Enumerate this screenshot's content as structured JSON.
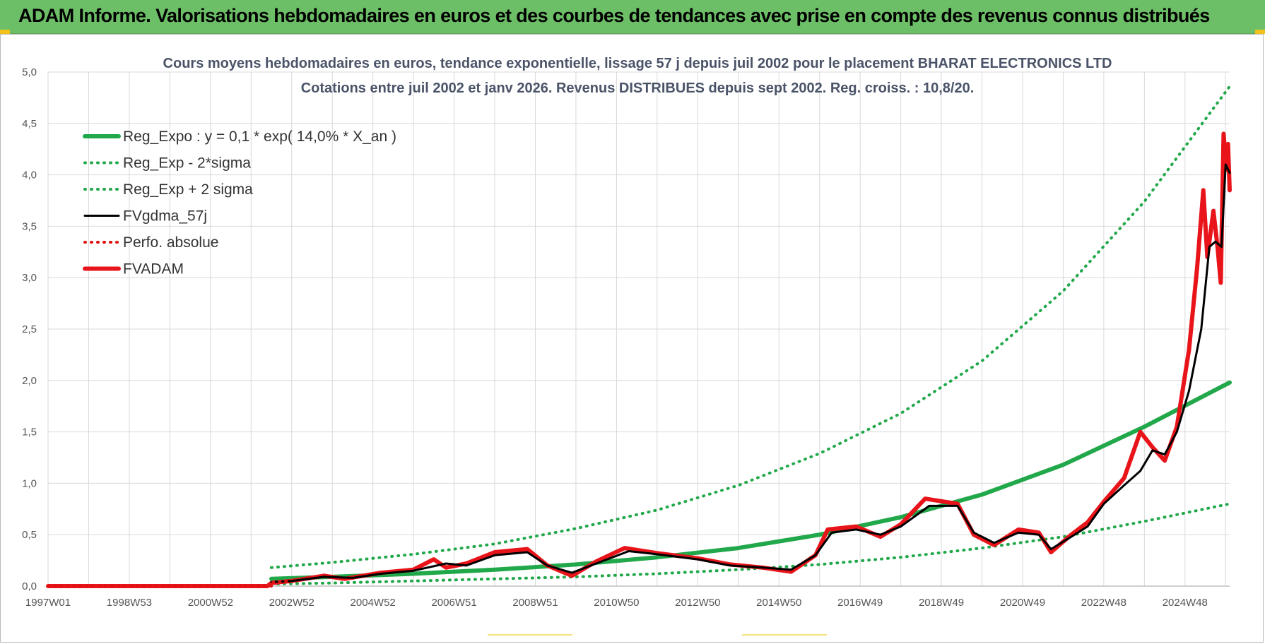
{
  "header": {
    "title": "ADAM Informe. Valorisations hebdomadaires en euros et des courbes de tendances avec prise en compte des revenus connus distribués"
  },
  "colors": {
    "header_bg": "#6dbf67",
    "reg_expo": "#21a84a",
    "reg_band": "#21a84a",
    "fvgdma": "#000000",
    "perfo": "#e01010",
    "fvadam": "#e8141a",
    "grid": "#d9d9d9"
  },
  "chart_data": {
    "type": "line",
    "title": "Cours moyens hebdomadaires en euros, tendance exponentielle, lissage 57 j depuis juil 2002 pour le placement BHARAT ELECTRONICS LTD",
    "subtitle": "Cotations entre juil 2002 et janv 2026. Revenus DISTRIBUES depuis sept 2002. Reg. croiss. : 10,8/20.",
    "xlabel": "",
    "ylabel": "",
    "x_range": [
      1997.0,
      2026.1
    ],
    "ylim": [
      0,
      5
    ],
    "y_ticks": [
      "0,0",
      "0,5",
      "1,0",
      "1,5",
      "2,0",
      "2,5",
      "3,0",
      "3,5",
      "4,0",
      "4,5",
      "5,0"
    ],
    "x_tick_labels": [
      "1997W01",
      "1998W53",
      "2000W52",
      "2002W52",
      "2004W52",
      "2006W51",
      "2008W51",
      "2010W50",
      "2012W50",
      "2014W50",
      "2016W49",
      "2018W49",
      "2020W49",
      "2022W48",
      "2024W48"
    ],
    "grid": true,
    "legend_position": "top-left",
    "series": [
      {
        "name": "Reg_Expo : y = 0,1 * exp( 14,0% *  X_an )",
        "style": "solid-thick",
        "color": "#21a84a",
        "points": [
          [
            2002.5,
            0.07
          ],
          [
            2004,
            0.09
          ],
          [
            2006,
            0.12
          ],
          [
            2008,
            0.16
          ],
          [
            2010,
            0.21
          ],
          [
            2012,
            0.28
          ],
          [
            2014,
            0.37
          ],
          [
            2016,
            0.5
          ],
          [
            2018,
            0.67
          ],
          [
            2020,
            0.89
          ],
          [
            2022,
            1.18
          ],
          [
            2024,
            1.55
          ],
          [
            2026.1,
            1.98
          ]
        ]
      },
      {
        "name": "Reg_Exp - 2*sigma",
        "style": "dotted",
        "color": "#21a84a",
        "points": [
          [
            2002.5,
            0.02
          ],
          [
            2004,
            0.03
          ],
          [
            2006,
            0.05
          ],
          [
            2008,
            0.07
          ],
          [
            2010,
            0.09
          ],
          [
            2012,
            0.12
          ],
          [
            2014,
            0.16
          ],
          [
            2016,
            0.21
          ],
          [
            2018,
            0.28
          ],
          [
            2020,
            0.37
          ],
          [
            2022,
            0.48
          ],
          [
            2024,
            0.63
          ],
          [
            2026.1,
            0.8
          ]
        ]
      },
      {
        "name": "Reg_Exp + 2 sigma",
        "style": "dotted",
        "color": "#21a84a",
        "points": [
          [
            2002.5,
            0.18
          ],
          [
            2004,
            0.23
          ],
          [
            2006,
            0.31
          ],
          [
            2008,
            0.41
          ],
          [
            2010,
            0.56
          ],
          [
            2012,
            0.74
          ],
          [
            2014,
            0.98
          ],
          [
            2016,
            1.29
          ],
          [
            2018,
            1.68
          ],
          [
            2020,
            2.19
          ],
          [
            2022,
            2.87
          ],
          [
            2024,
            3.74
          ],
          [
            2026.1,
            4.86
          ]
        ]
      },
      {
        "name": "FVgdma_57j",
        "style": "solid",
        "color": "#000000",
        "points": [
          [
            2002.5,
            0.04
          ],
          [
            2003,
            0.05
          ],
          [
            2003.8,
            0.09
          ],
          [
            2004.5,
            0.08
          ],
          [
            2005.2,
            0.12
          ],
          [
            2006,
            0.15
          ],
          [
            2006.8,
            0.22
          ],
          [
            2007.3,
            0.2
          ],
          [
            2008,
            0.3
          ],
          [
            2008.8,
            0.33
          ],
          [
            2009.3,
            0.2
          ],
          [
            2009.9,
            0.13
          ],
          [
            2010.5,
            0.22
          ],
          [
            2011.3,
            0.34
          ],
          [
            2012,
            0.31
          ],
          [
            2013,
            0.26
          ],
          [
            2013.8,
            0.2
          ],
          [
            2014.6,
            0.18
          ],
          [
            2015.3,
            0.16
          ],
          [
            2015.9,
            0.3
          ],
          [
            2016.3,
            0.52
          ],
          [
            2016.9,
            0.55
          ],
          [
            2017.5,
            0.5
          ],
          [
            2018,
            0.58
          ],
          [
            2018.7,
            0.78
          ],
          [
            2019.4,
            0.78
          ],
          [
            2019.8,
            0.52
          ],
          [
            2020.3,
            0.42
          ],
          [
            2020.9,
            0.52
          ],
          [
            2021.4,
            0.5
          ],
          [
            2021.7,
            0.36
          ],
          [
            2022.2,
            0.48
          ],
          [
            2022.6,
            0.58
          ],
          [
            2023,
            0.8
          ],
          [
            2023.5,
            0.98
          ],
          [
            2023.9,
            1.12
          ],
          [
            2024.2,
            1.32
          ],
          [
            2024.5,
            1.28
          ],
          [
            2024.8,
            1.5
          ],
          [
            2025.1,
            1.9
          ],
          [
            2025.4,
            2.5
          ],
          [
            2025.6,
            3.3
          ],
          [
            2025.75,
            3.35
          ],
          [
            2025.9,
            3.3
          ],
          [
            2026.0,
            4.1
          ],
          [
            2026.1,
            4.02
          ]
        ]
      },
      {
        "name": "Perfo. absolue",
        "style": "dotted",
        "color": "#e01010",
        "points": [
          [
            1997.0,
            0.0
          ],
          [
            2002.5,
            0.0
          ],
          [
            2002.5,
            0.04
          ],
          [
            2003,
            0.05
          ]
        ]
      },
      {
        "name": "FVADAM",
        "style": "solid-thick",
        "color": "#e8141a",
        "points": [
          [
            1997.0,
            0.0
          ],
          [
            2002.4,
            0.0
          ],
          [
            2002.5,
            0.03
          ],
          [
            2003,
            0.05
          ],
          [
            2003.8,
            0.1
          ],
          [
            2004.3,
            0.07
          ],
          [
            2005.2,
            0.13
          ],
          [
            2006,
            0.16
          ],
          [
            2006.5,
            0.26
          ],
          [
            2006.8,
            0.18
          ],
          [
            2007.3,
            0.22
          ],
          [
            2008,
            0.33
          ],
          [
            2008.8,
            0.36
          ],
          [
            2009.3,
            0.2
          ],
          [
            2009.9,
            0.1
          ],
          [
            2010.5,
            0.24
          ],
          [
            2011.2,
            0.37
          ],
          [
            2012,
            0.32
          ],
          [
            2013,
            0.27
          ],
          [
            2013.8,
            0.21
          ],
          [
            2014.6,
            0.18
          ],
          [
            2015.3,
            0.14
          ],
          [
            2015.9,
            0.3
          ],
          [
            2016.2,
            0.55
          ],
          [
            2016.9,
            0.58
          ],
          [
            2017.5,
            0.48
          ],
          [
            2018,
            0.6
          ],
          [
            2018.6,
            0.85
          ],
          [
            2019.4,
            0.8
          ],
          [
            2019.8,
            0.5
          ],
          [
            2020.3,
            0.4
          ],
          [
            2020.9,
            0.55
          ],
          [
            2021.4,
            0.52
          ],
          [
            2021.7,
            0.33
          ],
          [
            2022.2,
            0.5
          ],
          [
            2022.6,
            0.62
          ],
          [
            2023,
            0.82
          ],
          [
            2023.5,
            1.05
          ],
          [
            2023.9,
            1.5
          ],
          [
            2024.2,
            1.35
          ],
          [
            2024.5,
            1.22
          ],
          [
            2024.8,
            1.55
          ],
          [
            2025.1,
            2.3
          ],
          [
            2025.3,
            3.1
          ],
          [
            2025.45,
            3.85
          ],
          [
            2025.55,
            3.2
          ],
          [
            2025.7,
            3.65
          ],
          [
            2025.8,
            3.3
          ],
          [
            2025.88,
            2.95
          ],
          [
            2025.95,
            4.4
          ],
          [
            2026.02,
            4.05
          ],
          [
            2026.06,
            4.3
          ],
          [
            2026.1,
            3.85
          ]
        ]
      }
    ]
  }
}
